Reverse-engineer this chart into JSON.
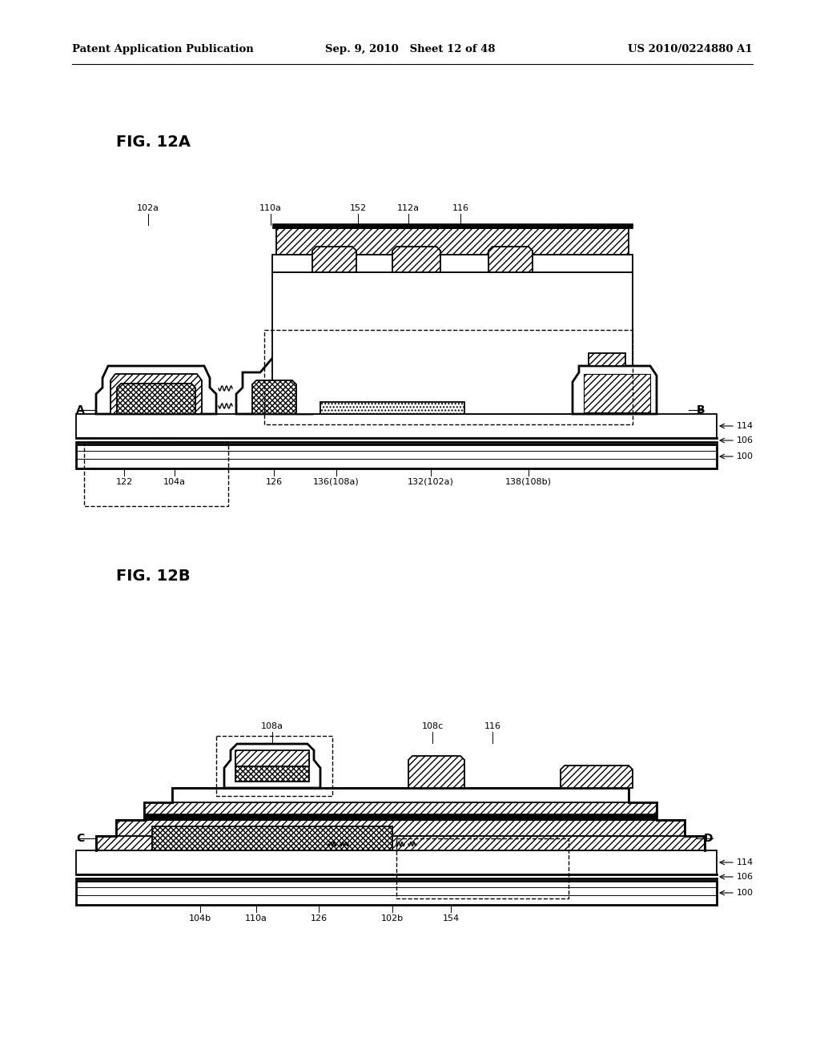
{
  "bg_color": "#ffffff",
  "header_left": "Patent Application Publication",
  "header_mid": "Sep. 9, 2010   Sheet 12 of 48",
  "header_right": "US 2010/0224880 A1",
  "fig12a_label": "FIG. 12A",
  "fig12b_label": "FIG. 12B"
}
